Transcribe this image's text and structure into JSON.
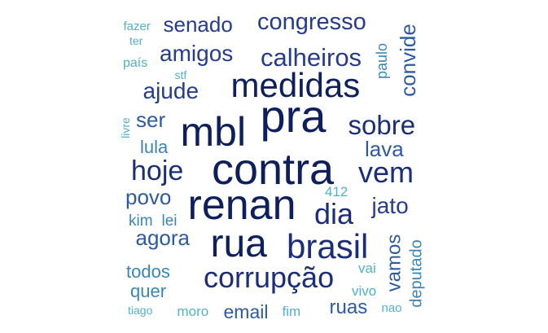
{
  "palette": {
    "darkest": "#0d1f5c",
    "dark": "#1a2e7a",
    "mid": "#253c8f",
    "blue": "#2d5aa0",
    "teal": "#3a85b8",
    "light": "#52b0cc"
  },
  "words": [
    {
      "id": "contra",
      "text": "contra",
      "tone": "darkest"
    },
    {
      "id": "pra",
      "text": "pra",
      "tone": "darkest"
    },
    {
      "id": "renan",
      "text": "renan",
      "tone": "darkest"
    },
    {
      "id": "mbl",
      "text": "mbl",
      "tone": "darkest"
    },
    {
      "id": "medidas",
      "text": "medidas",
      "tone": "darkest"
    },
    {
      "id": "rua",
      "text": "rua",
      "tone": "darkest"
    },
    {
      "id": "brasil",
      "text": "brasil",
      "tone": "dark"
    },
    {
      "id": "corrupcao",
      "text": "corrupção",
      "tone": "dark"
    },
    {
      "id": "dia",
      "text": "dia",
      "tone": "dark"
    },
    {
      "id": "vem",
      "text": "vem",
      "tone": "dark"
    },
    {
      "id": "sobre",
      "text": "sobre",
      "tone": "dark"
    },
    {
      "id": "hoje",
      "text": "hoje",
      "tone": "dark"
    },
    {
      "id": "calheiros",
      "text": "calheiros",
      "tone": "mid"
    },
    {
      "id": "congresso",
      "text": "congresso",
      "tone": "mid"
    },
    {
      "id": "amigos",
      "text": "amigos",
      "tone": "mid"
    },
    {
      "id": "senado",
      "text": "senado",
      "tone": "mid"
    },
    {
      "id": "ajude",
      "text": "ajude",
      "tone": "mid"
    },
    {
      "id": "jato",
      "text": "jato",
      "tone": "mid"
    },
    {
      "id": "lava",
      "text": "lava",
      "tone": "blue"
    },
    {
      "id": "agora",
      "text": "agora",
      "tone": "blue"
    },
    {
      "id": "povo",
      "text": "povo",
      "tone": "blue"
    },
    {
      "id": "ser",
      "text": "ser",
      "tone": "blue"
    },
    {
      "id": "convide",
      "text": "convide",
      "tone": "blue"
    },
    {
      "id": "vamos",
      "text": "vamos",
      "tone": "blue"
    },
    {
      "id": "ruas",
      "text": "ruas",
      "tone": "blue"
    },
    {
      "id": "email",
      "text": "email",
      "tone": "blue"
    },
    {
      "id": "lula",
      "text": "lula",
      "tone": "teal"
    },
    {
      "id": "todos",
      "text": "todos",
      "tone": "teal"
    },
    {
      "id": "quer",
      "text": "quer",
      "tone": "teal"
    },
    {
      "id": "kim",
      "text": "kim",
      "tone": "teal"
    },
    {
      "id": "lei",
      "text": "lei",
      "tone": "teal"
    },
    {
      "id": "deputado",
      "text": "deputado",
      "tone": "teal"
    },
    {
      "id": "paulo",
      "text": "paulo",
      "tone": "teal"
    },
    {
      "id": "vai",
      "text": "vai",
      "tone": "light"
    },
    {
      "id": "vivo",
      "text": "vivo",
      "tone": "light"
    },
    {
      "id": "moro",
      "text": "moro",
      "tone": "light"
    },
    {
      "id": "fim",
      "text": "fim",
      "tone": "light"
    },
    {
      "id": "nao",
      "text": "nao",
      "tone": "light"
    },
    {
      "id": "n412",
      "text": "412",
      "tone": "light"
    },
    {
      "id": "fazer",
      "text": "fazer",
      "tone": "light"
    },
    {
      "id": "ter",
      "text": "ter",
      "tone": "light"
    },
    {
      "id": "pais",
      "text": "país",
      "tone": "light"
    },
    {
      "id": "stf",
      "text": "stf",
      "tone": "light"
    },
    {
      "id": "livre",
      "text": "livre",
      "tone": "light"
    },
    {
      "id": "tiago",
      "text": "tiago",
      "tone": "light"
    }
  ]
}
